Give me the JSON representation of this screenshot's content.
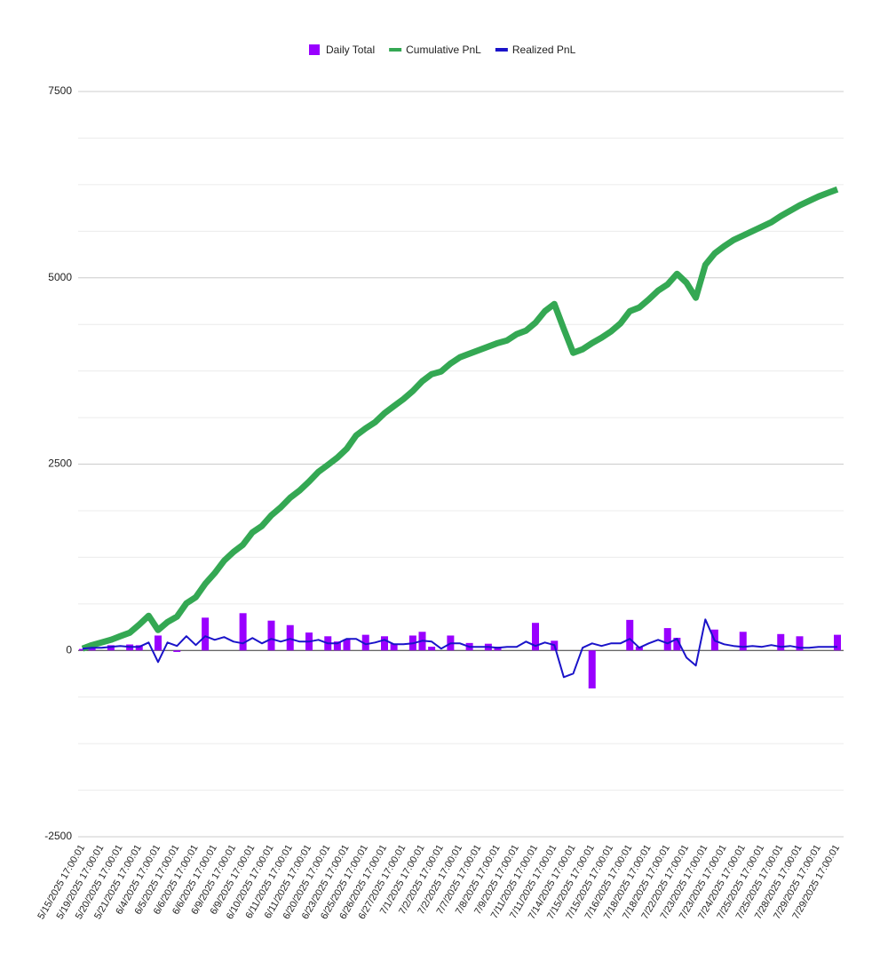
{
  "chart_data": {
    "type": "combo",
    "categories": [
      "5/15/2025 17:00:01",
      null,
      "5/19/2025 17:00:01",
      null,
      "5/20/2025 17:00:01",
      null,
      "5/21/2025 17:00:01",
      null,
      "6/4/2025 17:00:01",
      null,
      "6/5/2025 17:00:01",
      null,
      "6/6/2025 17:00:01",
      null,
      "6/6/2025 17:00:01",
      null,
      "6/9/2025 17:00:01",
      null,
      "6/9/2025 17:00:01",
      null,
      "6/10/2025 17:00:01",
      null,
      "6/11/2025 17:00:01",
      null,
      "6/11/2025 17:00:01",
      null,
      "6/20/2025 17:00:01",
      null,
      "6/23/2025 17:00:01",
      null,
      "6/25/2025 17:00:01",
      null,
      "6/26/2025 17:00:01",
      null,
      "6/27/2025 17:00:01",
      null,
      "7/1/2025 17:00:01",
      null,
      "7/2/2025 17:00:01",
      null,
      "7/2/2025 17:00:01",
      null,
      "7/7/2025 17:00:01",
      null,
      "7/8/2025 17:00:01",
      null,
      "7/9/2025 17:00:01",
      null,
      "7/11/2025 17:00:01",
      null,
      "7/11/2025 17:00:01",
      null,
      "7/14/2025 17:00:01",
      null,
      "7/15/2025 17:00:01",
      null,
      "7/15/2025 17:00:01",
      null,
      "7/16/2025 17:00:01",
      null,
      "7/18/2025 17:00:01",
      null,
      "7/18/2025 17:00:01",
      null,
      "7/22/2025 17:00:01",
      null,
      "7/23/2025 17:00:01",
      null,
      "7/23/2025 17:00:01",
      null,
      "7/24/2025 17:00:01",
      null,
      "7/25/2025 17:00:01",
      null,
      "7/25/2025 17:00:01",
      null,
      "7/28/2025 17:00:01",
      null,
      "7/29/2025 17:00:01",
      null,
      "7/29/2025 17:00:01"
    ],
    "series": [
      {
        "name": "Daily Total",
        "type": "bar",
        "color": "#9900ff",
        "values": [
          20,
          40,
          null,
          70,
          null,
          80,
          70,
          null,
          200,
          null,
          -20,
          null,
          null,
          440,
          null,
          null,
          null,
          500,
          null,
          null,
          400,
          null,
          340,
          null,
          240,
          null,
          190,
          120,
          150,
          null,
          210,
          null,
          190,
          90,
          null,
          200,
          250,
          50,
          null,
          200,
          null,
          100,
          null,
          90,
          50,
          null,
          null,
          null,
          370,
          null,
          130,
          null,
          null,
          null,
          -510,
          null,
          null,
          null,
          410,
          50,
          null,
          null,
          300,
          170,
          null,
          null,
          null,
          280,
          null,
          null,
          250,
          null,
          null,
          null,
          220,
          null,
          190,
          null,
          null,
          null,
          210
        ]
      },
      {
        "name": "Cumulative PnL",
        "type": "line",
        "color": "#34a853",
        "values": [
          24,
          72,
          107,
          143,
          191,
          238,
          346,
          465,
          274,
          381,
          453,
          632,
          715,
          894,
          1037,
          1204,
          1323,
          1418,
          1585,
          1669,
          1812,
          1919,
          2050,
          2146,
          2265,
          2396,
          2491,
          2587,
          2706,
          2885,
          2980,
          3063,
          3183,
          3278,
          3373,
          3481,
          3612,
          3707,
          3743,
          3850,
          3934,
          3981,
          4029,
          4077,
          4124,
          4160,
          4244,
          4291,
          4398,
          4553,
          4649,
          4315,
          3993,
          4041,
          4124,
          4196,
          4279,
          4387,
          4553,
          4601,
          4708,
          4828,
          4911,
          5054,
          4935,
          4732,
          5173,
          5328,
          5424,
          5507,
          5567,
          5626,
          5686,
          5745,
          5829,
          5900,
          5972,
          6032,
          6091,
          6140,
          6186
        ]
      },
      {
        "name": "Realized PnL",
        "type": "line",
        "color": "#1a13c9",
        "values": [
          24,
          36,
          36,
          48,
          60,
          48,
          48,
          107,
          -155,
          107,
          60,
          191,
          72,
          191,
          143,
          179,
          119,
          95,
          167,
          95,
          155,
          119,
          155,
          119,
          119,
          143,
          95,
          95,
          155,
          155,
          83,
          107,
          143,
          83,
          83,
          95,
          131,
          119,
          24,
          95,
          95,
          48,
          48,
          48,
          36,
          48,
          48,
          119,
          60,
          107,
          72,
          -358,
          -310,
          36,
          95,
          60,
          95,
          95,
          155,
          36,
          95,
          143,
          95,
          155,
          -95,
          -203,
          417,
          131,
          83,
          60,
          48,
          60,
          48,
          72,
          48,
          60,
          36,
          36,
          48,
          48,
          48
        ]
      }
    ],
    "ylim": [
      -2500,
      7500
    ],
    "yticks": [
      -2500,
      0,
      2500,
      5000,
      7500
    ],
    "minor_yticks": [
      -1875,
      -1250,
      -625,
      625,
      1250,
      1875,
      3125,
      3750,
      4375,
      5625,
      6250,
      6875
    ],
    "grid": true,
    "legend": "top"
  }
}
